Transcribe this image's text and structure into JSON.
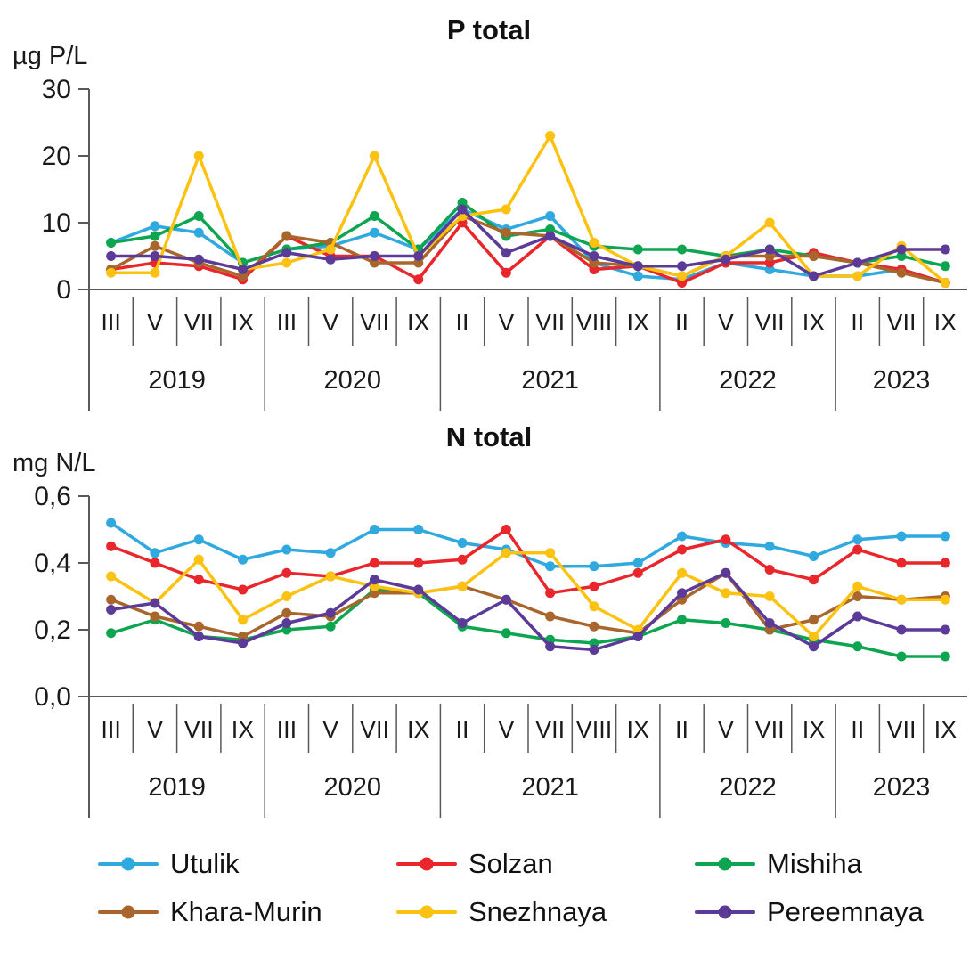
{
  "chart_data": [
    {
      "type": "line",
      "title": "P total",
      "ylabel": "µg P/L",
      "xlabel": "",
      "ylim": [
        0,
        30
      ],
      "grid": false,
      "y_ticks": [
        {
          "value": 30,
          "label": "30"
        },
        {
          "value": 20,
          "label": "20"
        },
        {
          "value": 10,
          "label": "10"
        },
        {
          "value": 0,
          "label": "0"
        }
      ],
      "categories": [
        "III",
        "V",
        "VII",
        "IX",
        "III",
        "V",
        "VII",
        "IX",
        "II",
        "V",
        "VII",
        "VIII",
        "IX",
        "II",
        "V",
        "VII",
        "IX",
        "II",
        "VII",
        "IX"
      ],
      "year_groups": [
        {
          "label": "2019",
          "count": 4
        },
        {
          "label": "2020",
          "count": 4
        },
        {
          "label": "2021",
          "count": 5
        },
        {
          "label": "2022",
          "count": 4
        },
        {
          "label": "2023",
          "count": 3
        }
      ],
      "series": [
        {
          "name": "Utulik",
          "color": "#2FA9DE",
          "values": [
            7,
            9.5,
            8.5,
            4,
            6,
            6.5,
            8.5,
            6,
            12,
            9,
            11,
            4,
            2,
            1.5,
            4,
            3,
            2,
            2,
            3,
            1
          ]
        },
        {
          "name": "Solzan",
          "color": "#E8262B",
          "values": [
            3,
            4,
            3.5,
            1.5,
            8,
            5,
            5,
            1.5,
            10,
            2.5,
            8,
            3,
            3.5,
            1,
            4,
            4,
            5.5,
            4,
            3,
            1
          ]
        },
        {
          "name": "Mishiha",
          "color": "#0DA550",
          "values": [
            7,
            8,
            11,
            4,
            6,
            7,
            11,
            6,
            13,
            8,
            9,
            6.5,
            6,
            6,
            5,
            6,
            5,
            4,
            5,
            3.5
          ]
        },
        {
          "name": "Khara-Murin",
          "color": "#A9662C",
          "values": [
            3,
            6.5,
            4,
            2,
            8,
            7,
            4,
            4,
            11,
            8.5,
            8,
            4,
            3.5,
            2,
            5,
            5,
            5,
            4,
            2.5,
            1
          ]
        },
        {
          "name": "Snezhnaya",
          "color": "#FCC211",
          "values": [
            2.5,
            2.5,
            20,
            3,
            4,
            6,
            20,
            5,
            11,
            12,
            23,
            7,
            3.5,
            2,
            5,
            10,
            2,
            2,
            6.5,
            1
          ]
        },
        {
          "name": "Pereemnaya",
          "color": "#5C3A98",
          "values": [
            5,
            5,
            4.5,
            3,
            5.5,
            4.5,
            5,
            5,
            12,
            5.5,
            8,
            5,
            3.5,
            3.5,
            4.5,
            6,
            2,
            4,
            6,
            6
          ]
        }
      ]
    },
    {
      "type": "line",
      "title": "N total",
      "ylabel": "mg N/L",
      "xlabel": "",
      "ylim": [
        0,
        0.6
      ],
      "grid": false,
      "y_ticks": [
        {
          "value": 0.6,
          "label": "0,6"
        },
        {
          "value": 0.4,
          "label": "0,4"
        },
        {
          "value": 0.2,
          "label": "0,2"
        },
        {
          "value": 0.0,
          "label": "0,0"
        }
      ],
      "categories": [
        "III",
        "V",
        "VII",
        "IX",
        "III",
        "V",
        "VII",
        "IX",
        "II",
        "V",
        "VII",
        "VIII",
        "IX",
        "II",
        "V",
        "VII",
        "IX",
        "II",
        "VII",
        "IX"
      ],
      "year_groups": [
        {
          "label": "2019",
          "count": 4
        },
        {
          "label": "2020",
          "count": 4
        },
        {
          "label": "2021",
          "count": 5
        },
        {
          "label": "2022",
          "count": 4
        },
        {
          "label": "2023",
          "count": 3
        }
      ],
      "series": [
        {
          "name": "Utulik",
          "color": "#2FA9DE",
          "values": [
            0.52,
            0.43,
            0.47,
            0.41,
            0.44,
            0.43,
            0.5,
            0.5,
            0.46,
            0.44,
            0.39,
            0.39,
            0.4,
            0.48,
            0.46,
            0.45,
            0.42,
            0.47,
            0.48,
            0.48
          ]
        },
        {
          "name": "Solzan",
          "color": "#E8262B",
          "values": [
            0.45,
            0.4,
            0.35,
            0.32,
            0.37,
            0.36,
            0.4,
            0.4,
            0.41,
            0.5,
            0.31,
            0.33,
            0.37,
            0.44,
            0.47,
            0.38,
            0.35,
            0.44,
            0.4,
            0.4
          ]
        },
        {
          "name": "Mishiha",
          "color": "#0DA550",
          "values": [
            0.19,
            0.23,
            0.18,
            0.17,
            0.2,
            0.21,
            0.32,
            0.31,
            0.21,
            0.19,
            0.17,
            0.16,
            0.18,
            0.23,
            0.22,
            0.2,
            0.17,
            0.15,
            0.12,
            0.12
          ]
        },
        {
          "name": "Khara-Murin",
          "color": "#A9662C",
          "values": [
            0.29,
            0.24,
            0.21,
            0.18,
            0.25,
            0.24,
            0.31,
            0.31,
            0.33,
            0.29,
            0.24,
            0.21,
            0.19,
            0.29,
            0.37,
            0.2,
            0.23,
            0.3,
            0.29,
            0.3
          ]
        },
        {
          "name": "Snezhnaya",
          "color": "#FCC211",
          "values": [
            0.36,
            0.28,
            0.41,
            0.23,
            0.3,
            0.36,
            0.33,
            0.31,
            0.33,
            0.43,
            0.43,
            0.27,
            0.2,
            0.37,
            0.31,
            0.3,
            0.18,
            0.33,
            0.29,
            0.29
          ]
        },
        {
          "name": "Pereemnaya",
          "color": "#5C3A98",
          "values": [
            0.26,
            0.28,
            0.18,
            0.16,
            0.22,
            0.25,
            0.35,
            0.32,
            0.22,
            0.29,
            0.15,
            0.14,
            0.18,
            0.31,
            0.37,
            0.22,
            0.15,
            0.24,
            0.2,
            0.2
          ]
        }
      ]
    }
  ],
  "legend": {
    "items": [
      {
        "label": "Utulik",
        "color": "#2FA9DE"
      },
      {
        "label": "Solzan",
        "color": "#E8262B"
      },
      {
        "label": "Mishiha",
        "color": "#0DA550"
      },
      {
        "label": "Khara-Murin",
        "color": "#A9662C"
      },
      {
        "label": "Snezhnaya",
        "color": "#FCC211"
      },
      {
        "label": "Pereemnaya",
        "color": "#5C3A98"
      }
    ]
  }
}
